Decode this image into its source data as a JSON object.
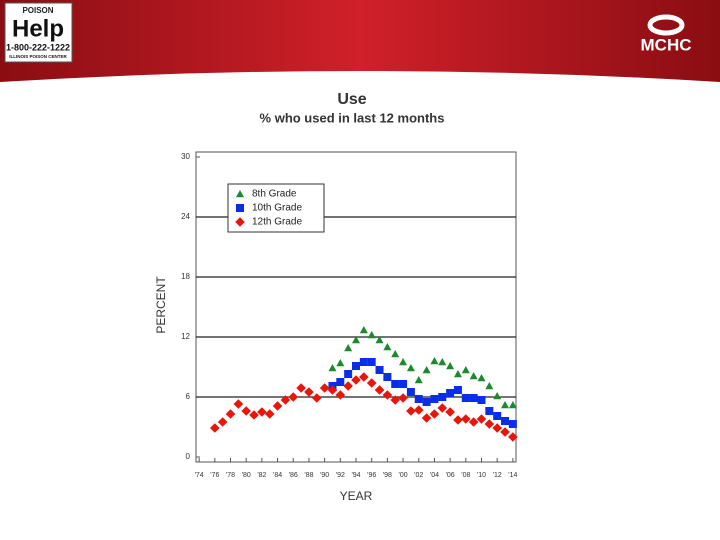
{
  "header": {
    "logo_top": "POISON",
    "logo_main": "Help",
    "logo_phone": "1-800-222-1222",
    "logo_sub": "ILLINOIS POISON CENTER",
    "org": "MCHC"
  },
  "chart_data": {
    "type": "scatter",
    "title": "Use",
    "subtitle": "% who used in last 12 months",
    "x_label": "YEAR",
    "y_label": "PERCENT",
    "x": [
      1976,
      1977,
      1978,
      1979,
      1980,
      1981,
      1982,
      1983,
      1984,
      1985,
      1986,
      1987,
      1988,
      1989,
      1990,
      1991,
      1992,
      1993,
      1994,
      1995,
      1996,
      1997,
      1998,
      1999,
      2000,
      2001,
      2002,
      2003,
      2004,
      2005,
      2006,
      2007,
      2008,
      2009,
      2010,
      2011,
      2012,
      2013,
      2014
    ],
    "series": [
      {
        "name": "8th Grade",
        "color": "#1a8a2a",
        "marker": "triangle",
        "values": [
          null,
          null,
          null,
          null,
          null,
          null,
          null,
          null,
          null,
          null,
          null,
          null,
          null,
          null,
          null,
          8.9,
          9.4,
          10.9,
          11.7,
          12.7,
          12.2,
          11.7,
          11.0,
          10.3,
          9.5,
          8.9,
          7.7,
          8.7,
          9.6,
          9.5,
          9.1,
          8.3,
          8.7,
          8.1,
          7.9,
          7.1,
          6.1,
          5.2,
          5.2
        ]
      },
      {
        "name": "10th Grade",
        "color": "#0a2ee8",
        "marker": "square",
        "values": [
          null,
          null,
          null,
          null,
          null,
          null,
          null,
          null,
          null,
          null,
          null,
          null,
          null,
          null,
          null,
          7.1,
          7.5,
          8.3,
          9.1,
          9.5,
          9.5,
          8.7,
          8.0,
          7.3,
          7.3,
          6.5,
          5.8,
          5.5,
          5.8,
          6.0,
          6.4,
          6.7,
          5.9,
          5.9,
          5.7,
          4.6,
          4.1,
          3.6,
          3.3
        ]
      },
      {
        "name": "12th Grade",
        "color": "#e8150a",
        "marker": "diamond",
        "values": [
          2.9,
          3.5,
          4.3,
          5.3,
          4.6,
          4.2,
          4.5,
          4.3,
          5.1,
          5.7,
          6.0,
          6.9,
          6.5,
          5.9,
          6.9,
          6.7,
          6.2,
          7.1,
          7.7,
          8.0,
          7.4,
          6.7,
          6.2,
          5.7,
          5.9,
          4.6,
          4.7,
          3.9,
          4.3,
          4.9,
          4.5,
          3.7,
          3.8,
          3.5,
          3.8,
          3.3,
          2.9,
          2.5,
          2.0
        ]
      }
    ],
    "xlim": [
      1973.6,
      2014.4
    ],
    "xticks": [
      {
        "value": 1974,
        "label": "'74"
      },
      {
        "value": 1976,
        "label": "'76"
      },
      {
        "value": 1978,
        "label": "'78"
      },
      {
        "value": 1980,
        "label": "'80"
      },
      {
        "value": 1982,
        "label": "'82"
      },
      {
        "value": 1984,
        "label": "'84"
      },
      {
        "value": 1986,
        "label": "'86"
      },
      {
        "value": 1988,
        "label": "'88"
      },
      {
        "value": 1990,
        "label": "'90"
      },
      {
        "value": 1992,
        "label": "'92"
      },
      {
        "value": 1994,
        "label": "'94"
      },
      {
        "value": 1996,
        "label": "'96"
      },
      {
        "value": 1998,
        "label": "'98"
      },
      {
        "value": 2000,
        "label": "'00"
      },
      {
        "value": 2002,
        "label": "'02"
      },
      {
        "value": 2004,
        "label": "'04"
      },
      {
        "value": 2006,
        "label": "'06"
      },
      {
        "value": 2008,
        "label": "'08"
      },
      {
        "value": 2010,
        "label": "'10"
      },
      {
        "value": 2012,
        "label": "'12"
      },
      {
        "value": 2014,
        "label": "'14"
      }
    ],
    "ylim": [
      -0.5,
      30.5
    ],
    "yticks": [
      0,
      6,
      12,
      18,
      24,
      30
    ],
    "grid": true,
    "legend": "upper left"
  }
}
